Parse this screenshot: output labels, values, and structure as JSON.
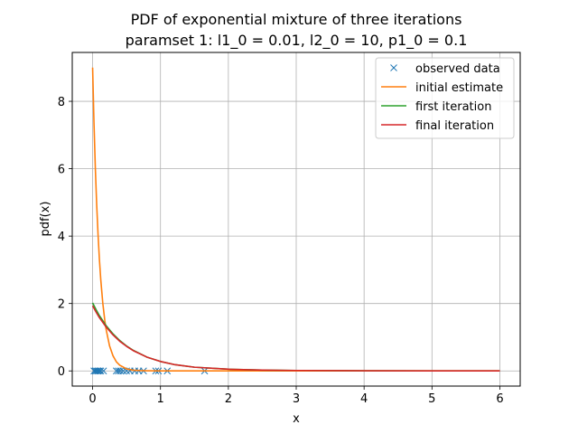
{
  "chart_data": {
    "type": "line",
    "title_lines": [
      "PDF of exponential mixture of three iterations",
      "paramset 1: l1_0 = 0.01, l2_0 = 10, p1_0 = 0.1"
    ],
    "xlabel": "x",
    "ylabel": "pdf(x)",
    "xlim": [
      -0.3,
      6.3
    ],
    "ylim": [
      -0.45,
      9.45
    ],
    "xticks": [
      0,
      1,
      2,
      3,
      4,
      5,
      6
    ],
    "yticks": [
      0,
      2,
      4,
      6,
      8
    ],
    "grid": true,
    "legend_position": "top-right",
    "series": [
      {
        "name": "observed data",
        "kind": "marker-x",
        "color": "#1f77b4",
        "x": [
          0.02,
          0.04,
          0.06,
          0.08,
          0.1,
          0.12,
          0.16,
          0.35,
          0.38,
          0.41,
          0.45,
          0.5,
          0.55,
          0.62,
          0.68,
          0.75,
          0.93,
          0.97,
          1.1,
          1.65
        ],
        "y": [
          0,
          0,
          0,
          0,
          0,
          0,
          0,
          0,
          0,
          0,
          0,
          0,
          0,
          0,
          0,
          0,
          0,
          0,
          0,
          0
        ]
      },
      {
        "name": "initial estimate",
        "kind": "line",
        "color": "#ff7f0e",
        "x": [
          0,
          0.02,
          0.04,
          0.06,
          0.08,
          0.1,
          0.12,
          0.15,
          0.18,
          0.2,
          0.25,
          0.3,
          0.35,
          0.4,
          0.5,
          0.6,
          0.7,
          0.8,
          1.0,
          1.5,
          2,
          3,
          4,
          5,
          6
        ],
        "y": [
          9.0,
          7.37,
          6.03,
          4.94,
          4.05,
          3.31,
          2.71,
          2.01,
          1.49,
          1.22,
          0.74,
          0.45,
          0.27,
          0.17,
          0.06,
          0.022,
          0.0098,
          0.0048,
          0.0019,
          0.0014,
          0.0013,
          0.0013,
          0.0013,
          0.0012,
          0.0012
        ]
      },
      {
        "name": "first iteration",
        "kind": "line",
        "color": "#2ca02c",
        "x": [
          0,
          0.05,
          0.1,
          0.2,
          0.3,
          0.4,
          0.5,
          0.6,
          0.8,
          1.0,
          1.2,
          1.5,
          2.0,
          2.5,
          3,
          4,
          5,
          6
        ],
        "y": [
          2.02,
          1.82,
          1.64,
          1.34,
          1.1,
          0.9,
          0.74,
          0.61,
          0.41,
          0.28,
          0.19,
          0.11,
          0.05,
          0.025,
          0.013,
          0.004,
          0.0015,
          0.0006
        ]
      },
      {
        "name": "final iteration",
        "kind": "line",
        "color": "#d62728",
        "x": [
          0,
          0.05,
          0.1,
          0.2,
          0.3,
          0.4,
          0.5,
          0.6,
          0.8,
          1.0,
          1.2,
          1.5,
          2.0,
          2.5,
          3,
          4,
          5,
          6
        ],
        "y": [
          1.93,
          1.75,
          1.58,
          1.3,
          1.07,
          0.88,
          0.73,
          0.6,
          0.41,
          0.28,
          0.19,
          0.11,
          0.05,
          0.025,
          0.013,
          0.004,
          0.0015,
          0.0006
        ]
      }
    ]
  }
}
